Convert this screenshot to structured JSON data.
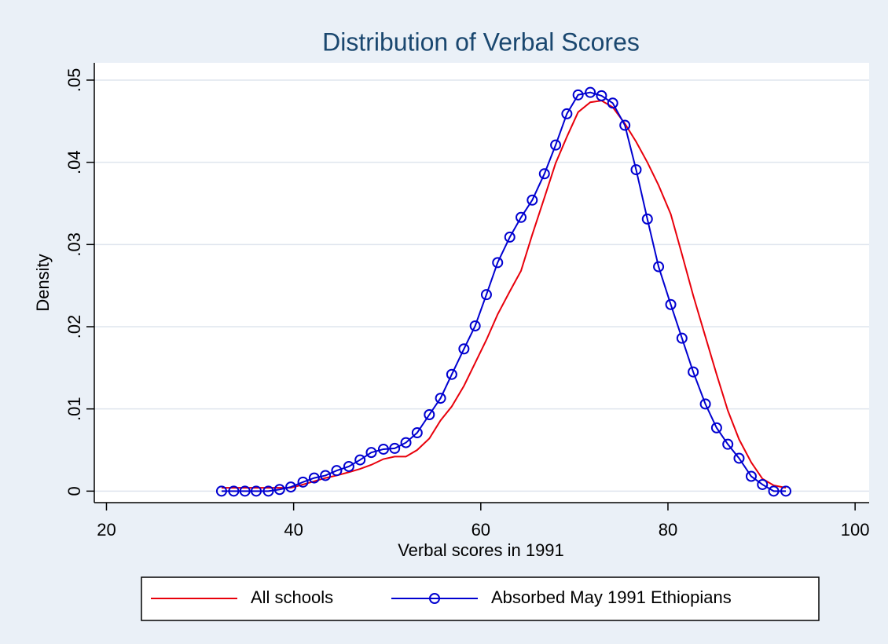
{
  "chart_data": {
    "type": "line",
    "title": "Distribution of Verbal Scores",
    "xlabel": "Verbal scores in 1991",
    "ylabel": "Density",
    "x": [
      32.3,
      33.6,
      34.8,
      36.0,
      37.3,
      38.5,
      39.7,
      41.0,
      42.2,
      43.4,
      44.6,
      45.9,
      47.1,
      48.3,
      49.6,
      50.8,
      52.0,
      53.2,
      54.5,
      55.7,
      56.9,
      58.2,
      59.4,
      60.6,
      61.8,
      63.1,
      64.3,
      65.5,
      66.8,
      68.0,
      69.2,
      70.4,
      71.7,
      72.9,
      74.1,
      75.4,
      76.6,
      77.8,
      79.0,
      80.3,
      81.5,
      82.7,
      84.0,
      85.2,
      86.4,
      87.6,
      88.9,
      90.1,
      91.3,
      92.6
    ],
    "series": [
      {
        "name": "All schools",
        "color": "#e8000b",
        "marker": false,
        "values": [
          0.0004,
          0.0004,
          0.0004,
          0.0004,
          0.0004,
          0.0004,
          0.0004,
          0.0008,
          0.0012,
          0.0016,
          0.0019,
          0.0023,
          0.0027,
          0.0032,
          0.0039,
          0.0042,
          0.0042,
          0.005,
          0.0064,
          0.0086,
          0.0103,
          0.0128,
          0.0156,
          0.0184,
          0.0215,
          0.0243,
          0.0268,
          0.0312,
          0.0357,
          0.0399,
          0.0431,
          0.0461,
          0.0473,
          0.0475,
          0.0467,
          0.0447,
          0.0425,
          0.04,
          0.0372,
          0.0337,
          0.0288,
          0.0238,
          0.0188,
          0.0142,
          0.0098,
          0.0063,
          0.0035,
          0.0015,
          0.0007,
          0.0004
        ]
      },
      {
        "name": "Absorbed May 1991 Ethiopians",
        "color": "#0000d0",
        "marker": true,
        "values": [
          0,
          0,
          0,
          0,
          0,
          0.0002,
          0.0005,
          0.0011,
          0.0016,
          0.0019,
          0.0025,
          0.003,
          0.0038,
          0.0047,
          0.0051,
          0.0052,
          0.0059,
          0.0071,
          0.0093,
          0.0113,
          0.0142,
          0.0173,
          0.0201,
          0.0239,
          0.0278,
          0.0309,
          0.0333,
          0.0354,
          0.0386,
          0.0421,
          0.0459,
          0.0482,
          0.0485,
          0.0481,
          0.0472,
          0.0445,
          0.0391,
          0.0331,
          0.0273,
          0.0227,
          0.0186,
          0.0145,
          0.0106,
          0.0077,
          0.0057,
          0.004,
          0.0018,
          0.0008,
          0,
          0
        ]
      }
    ],
    "xlim": [
      18.7,
      101.5
    ],
    "xticks": [
      20,
      40,
      60,
      80,
      100
    ],
    "ylim": [
      -0.0014,
      0.0521
    ],
    "yticks": [
      0,
      {
        "value": 0.01,
        "label": ".01"
      },
      {
        "value": 0.02,
        "label": ".02"
      },
      {
        "value": 0.03,
        "label": ".03"
      },
      {
        "value": 0.04,
        "label": ".04"
      },
      {
        "value": 0.05,
        "label": ".05"
      }
    ],
    "grid": true,
    "legend": "bottom"
  }
}
